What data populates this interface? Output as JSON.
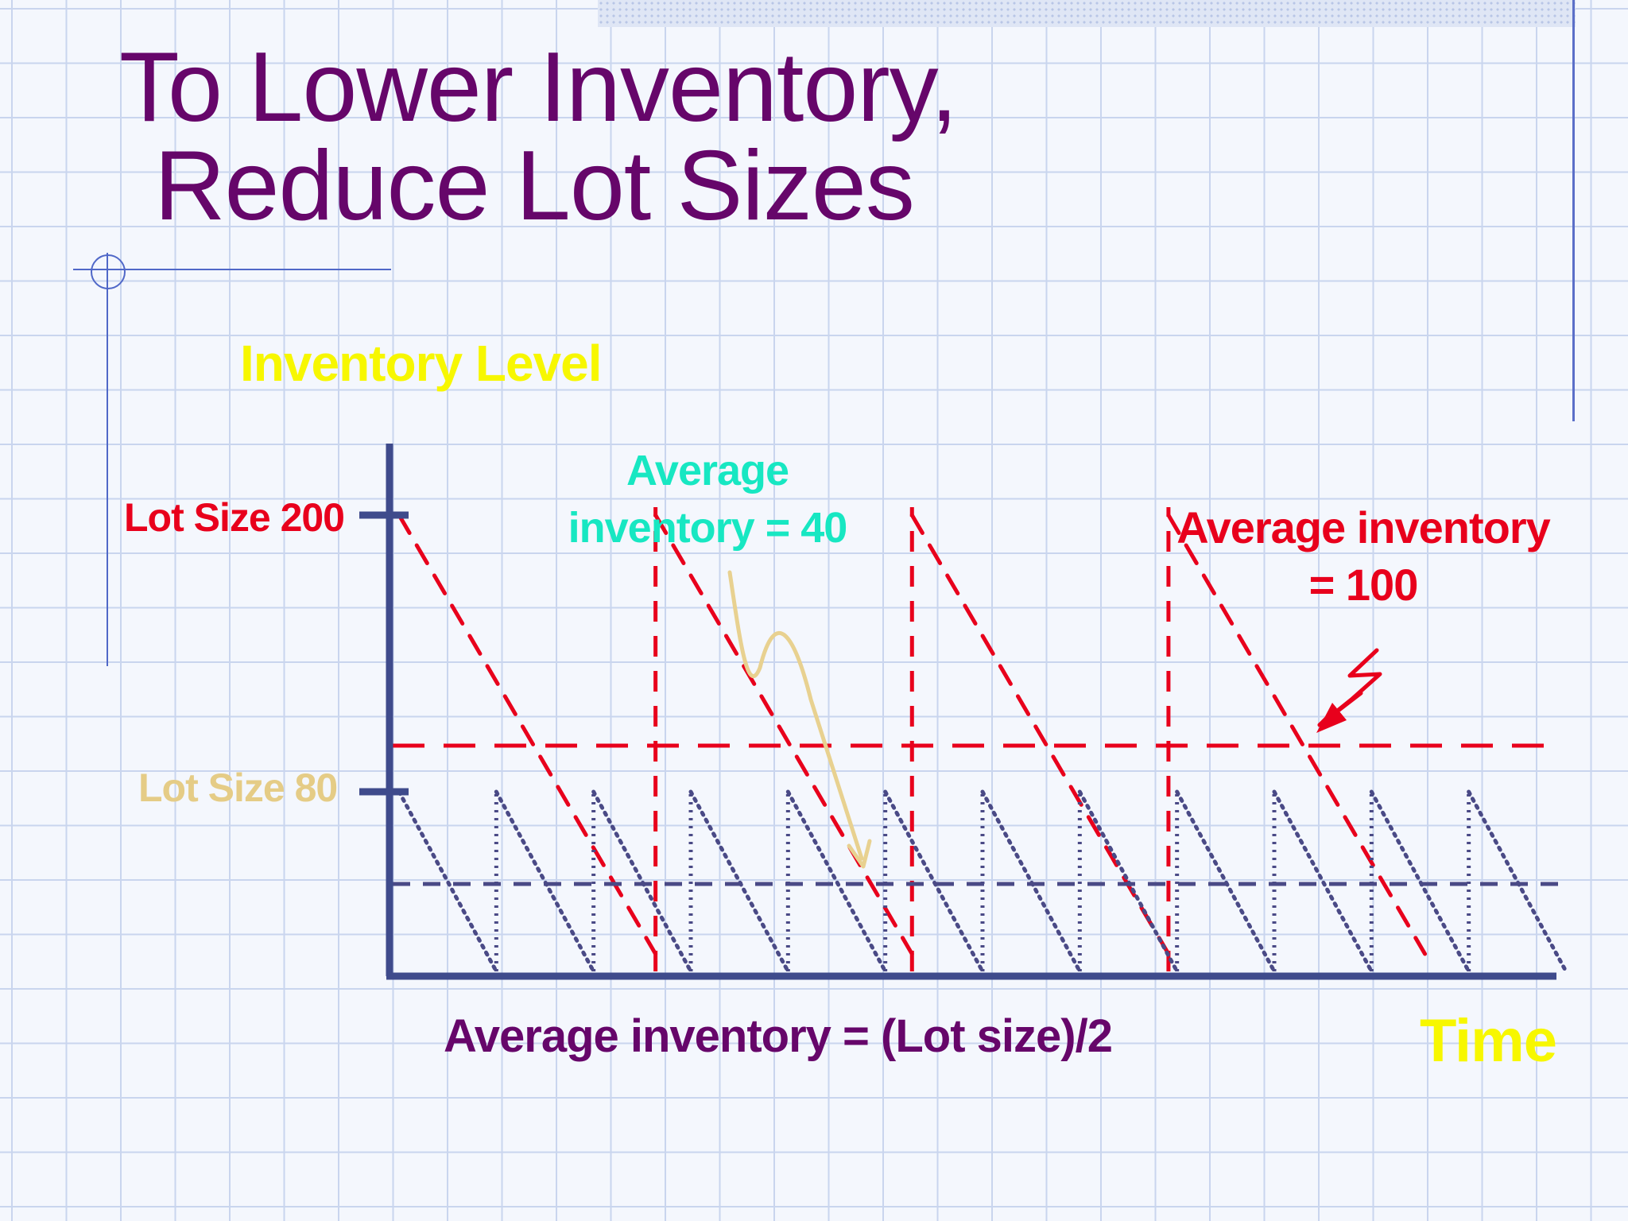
{
  "slide": {
    "title_line1": "To Lower Inventory,",
    "title_line2": "Reduce Lot Sizes"
  },
  "chart_data": {
    "type": "line",
    "ylabel": "Inventory Level",
    "xlabel": "Time",
    "ylim": [
      0,
      200
    ],
    "y_tick_labels": [
      {
        "label": "Lot Size 200",
        "value": 200
      },
      {
        "label": "Lot Size 80",
        "value": 80
      }
    ],
    "series": [
      {
        "name": "Lot Size 200",
        "color": "#e8001c",
        "style": "dashed",
        "lot_size": 200,
        "cycles": 4,
        "average": 100
      },
      {
        "name": "Lot Size 80",
        "color": "#4a4a86",
        "style": "dotted",
        "lot_size": 80,
        "cycles": 12,
        "average": 40
      }
    ],
    "annotations": [
      {
        "text_line1": "Average",
        "text_line2": "inventory = 40",
        "color": "#17e7c2"
      },
      {
        "text_line1": "Average inventory",
        "text_line2": "= 100",
        "color": "#e8001c"
      },
      {
        "text": "Average inventory = (Lot size)/2",
        "color": "#66066a"
      }
    ],
    "colors": {
      "axis": "#3f4b8c",
      "title": "#66066a",
      "axis_title": "#f7f700",
      "arrow_small_lot": "#e8d190"
    }
  }
}
